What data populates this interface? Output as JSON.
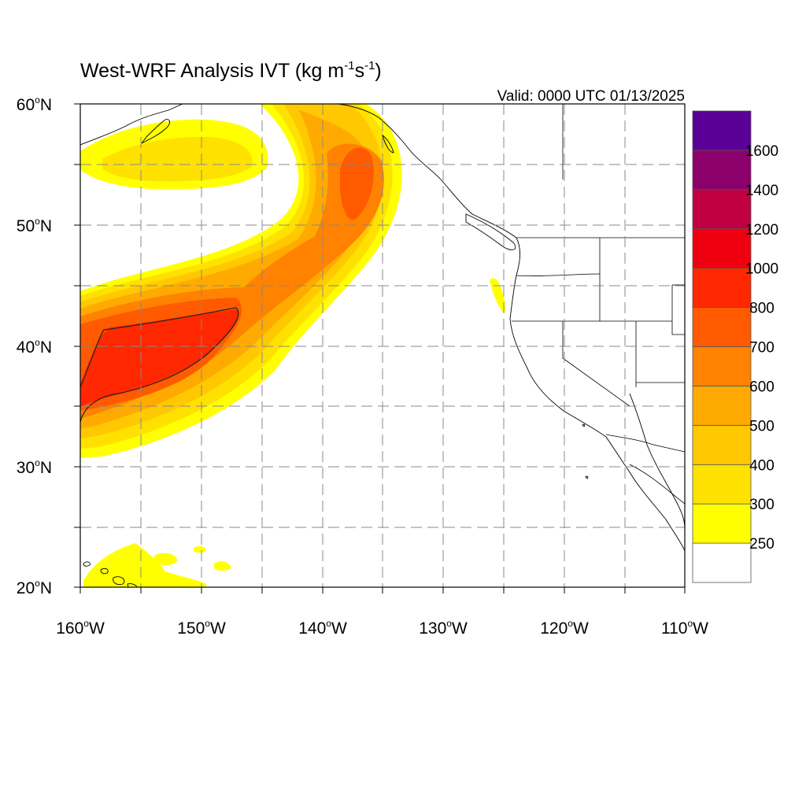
{
  "title": {
    "base": "West-WRF Analysis IVT (kg m",
    "exp1": "-1",
    "mid": "s",
    "exp2": "-1",
    "end": ")"
  },
  "valid": "Valid: 0000 UTC 01/13/2025",
  "lat_labels": [
    {
      "deg": "60",
      "hemi": "N"
    },
    {
      "deg": "50",
      "hemi": "N"
    },
    {
      "deg": "40",
      "hemi": "N"
    },
    {
      "deg": "30",
      "hemi": "N"
    },
    {
      "deg": "20",
      "hemi": "N"
    }
  ],
  "lon_labels": [
    {
      "deg": "160",
      "hemi": "W"
    },
    {
      "deg": "150",
      "hemi": "W"
    },
    {
      "deg": "140",
      "hemi": "W"
    },
    {
      "deg": "130",
      "hemi": "W"
    },
    {
      "deg": "120",
      "hemi": "W"
    },
    {
      "deg": "110",
      "hemi": "W"
    }
  ],
  "colorbar": {
    "colors": [
      "#ffffff",
      "#ffff00",
      "#ffe100",
      "#ffc800",
      "#ffaa00",
      "#ff8200",
      "#ff5a00",
      "#ff2800",
      "#ee0010",
      "#c00040",
      "#8c006c",
      "#5a0096"
    ],
    "labels": [
      "250",
      "300",
      "400",
      "500",
      "600",
      "700",
      "800",
      "1000",
      "1200",
      "1400",
      "1600"
    ]
  },
  "field_colors": {
    "c250": "#ffff00",
    "c300": "#ffe100",
    "c400": "#ffc800",
    "c500": "#ffaa00",
    "c600": "#ff8200",
    "c700": "#ff5a00",
    "c800": "#ff2800"
  }
}
